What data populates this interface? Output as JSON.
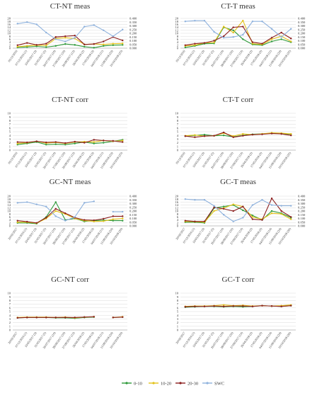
{
  "colors": {
    "d0_10": "#2e9a3a",
    "d10_20": "#e3c21a",
    "d20_30": "#8b1e1e",
    "swc": "#8fb2dd",
    "grid": "#d9d9d9",
    "axis": "#999999",
    "text": "#333333"
  },
  "legend": {
    "items": [
      {
        "key": "d0_10",
        "label": "0-10"
      },
      {
        "key": "d10_20",
        "label": "10-20"
      },
      {
        "key": "d20_30",
        "label": "20-30"
      },
      {
        "key": "swc",
        "label": "SWC"
      }
    ]
  },
  "chart_data": [
    {
      "id": "ctnt_meas",
      "title": "CT-NT meas",
      "type": "line",
      "ylim": [
        0,
        20
      ],
      "yticks": [
        0,
        2,
        4,
        6,
        8,
        10,
        12,
        14,
        16,
        18,
        20
      ],
      "y2lim": [
        0,
        0.4
      ],
      "y2ticks": [
        "0.000",
        "0.050",
        "0.100",
        "0.150",
        "0.200",
        "0.250",
        "0.300",
        "0.350",
        "0.400"
      ],
      "x": [
        "05/12/2016",
        "07/12/2016 (1)",
        "10/05/2017 (3)",
        "31/05/2017 (5)",
        "26/07/2017 (10)",
        "27/09/2017 (16)",
        "26/09/2017 (12)",
        "26/04/2018 (2)",
        "17/05/2018 (3)",
        "04/07/2018 (11)",
        "11/09/2018 (23)",
        "10/10/2018 (25)"
      ],
      "series": [
        {
          "name": "0-10",
          "key": "d0_10",
          "values": [
            0.5,
            0.8,
            1.2,
            0.7,
            1.5,
            2.8,
            2.2,
            1.0,
            0.3,
            1.5,
            2.0,
            2.2
          ]
        },
        {
          "name": "10-20",
          "key": "d10_20",
          "values": [
            1.0,
            1.5,
            2.0,
            1.8,
            6.5,
            7.0,
            6.5,
            2.5,
            2.8,
            2.5,
            3.0,
            3.2
          ]
        },
        {
          "name": "20-30",
          "key": "d20_30",
          "values": [
            2.0,
            3.5,
            2.2,
            3.0,
            7.5,
            8.0,
            8.5,
            2.5,
            2.8,
            4.5,
            7.5,
            5.2
          ]
        },
        {
          "name": "SWC",
          "key": "swc",
          "axis": "y2",
          "values": [
            0.33,
            0.35,
            0.32,
            0.21,
            0.12,
            0.09,
            0.14,
            0.29,
            0.31,
            0.24,
            0.16,
            0.25
          ]
        }
      ]
    },
    {
      "id": "ctt_meas",
      "title": "CT-T meas",
      "type": "line",
      "ylim": [
        0,
        20
      ],
      "yticks": [
        0,
        2,
        4,
        6,
        8,
        10,
        12,
        14,
        16,
        18,
        20
      ],
      "y2lim": [
        0,
        0.4
      ],
      "y2ticks": [
        "0.000",
        "0.050",
        "0.100",
        "0.150",
        "0.200",
        "0.250",
        "0.300",
        "0.350",
        "0.400"
      ],
      "x": [
        "05/12/2016",
        "07/12/2016 (1)",
        "10/05/2017 (3)",
        "31/05/2017 (5)",
        "26/07/2017 (10)",
        "28/09/2017 (16)",
        "27/09/2017 (13)",
        "26/04/2018 (2)",
        "17/05/2018 (3)",
        "04/07/2018 (11)",
        "11/09/2018 (24)",
        "10/10/2018 (25)"
      ],
      "series": [
        {
          "name": "0-10",
          "key": "d0_10",
          "values": [
            0.5,
            1.5,
            3.0,
            3.2,
            14.0,
            12.0,
            6.0,
            2.5,
            2.0,
            4.5,
            6.0,
            4.0
          ]
        },
        {
          "name": "10-20",
          "key": "d10_20",
          "values": [
            1.5,
            2.0,
            3.5,
            3.8,
            14.5,
            10.5,
            18.5,
            3.0,
            2.5,
            6.0,
            8.0,
            4.5
          ]
        },
        {
          "name": "20-30",
          "key": "d20_30",
          "values": [
            2.0,
            3.0,
            3.5,
            5.0,
            8.0,
            14.0,
            14.5,
            4.0,
            3.0,
            7.0,
            10.5,
            6.5
          ]
        },
        {
          "name": "SWC",
          "key": "swc",
          "axis": "y2",
          "values": [
            0.36,
            0.37,
            0.37,
            0.22,
            0.14,
            0.15,
            0.18,
            0.36,
            0.36,
            0.26,
            0.15,
            0.26
          ]
        }
      ]
    },
    {
      "id": "ctnt_corr",
      "title": "CT-NT corr",
      "type": "line",
      "ylim": [
        0,
        10
      ],
      "yticks": [
        0,
        1,
        2,
        3,
        4,
        5,
        6,
        7,
        8,
        9,
        10
      ],
      "x": [
        "05/12/2016",
        "07/12/2016 (1)",
        "10/05/2017 (3)",
        "31/05/2017 (5)",
        "26/07/2017 (10)",
        "27/09/2017 (16)",
        "26/09/2017 (12)",
        "26/04/2018 (2)",
        "17/05/2018 (3)",
        "04/07/2018 (11)",
        "11/09/2018 (23)",
        "10/10/2018 (25)"
      ],
      "series": [
        {
          "name": "0-10",
          "key": "d0_10",
          "values": [
            1.5,
            1.8,
            2.2,
            1.5,
            1.6,
            1.5,
            1.8,
            2.2,
            1.8,
            2.0,
            2.4,
            2.8
          ]
        },
        {
          "name": "10-20",
          "key": "d10_20",
          "values": [
            1.8,
            2.0,
            2.4,
            1.9,
            2.1,
            1.8,
            2.2,
            2.3,
            2.2,
            2.6,
            2.4,
            2.6
          ]
        },
        {
          "name": "20-30",
          "key": "d20_30",
          "values": [
            2.2,
            2.1,
            2.4,
            2.1,
            2.2,
            1.9,
            2.3,
            2.0,
            2.8,
            2.6,
            2.5,
            2.2
          ]
        }
      ]
    },
    {
      "id": "ctt_corr",
      "title": "CT-T corr",
      "type": "line",
      "ylim": [
        0,
        10
      ],
      "yticks": [
        0,
        1,
        2,
        3,
        4,
        5,
        6,
        7,
        8,
        9,
        10
      ],
      "x": [
        "05/12/2016",
        "07/12/2016 (1)",
        "10/05/2017 (3)",
        "31/05/2017 (5)",
        "26/07/2017 (10)",
        "28/09/2017 (16)",
        "27/09/2017 (13)",
        "26/04/2018 (2)",
        "17/05/2018 (3)",
        "04/07/2018 (14)",
        "11/09/2018 (24)",
        "10/10/2018 (25)"
      ],
      "series": [
        {
          "name": "0-10",
          "key": "d0_10",
          "values": [
            3.8,
            4.0,
            4.2,
            3.9,
            4.0,
            3.6,
            4.0,
            4.3,
            4.4,
            4.6,
            4.5,
            4.3
          ]
        },
        {
          "name": "10-20",
          "key": "d10_20",
          "values": [
            3.9,
            4.1,
            3.8,
            3.9,
            4.6,
            3.8,
            4.4,
            4.2,
            4.4,
            4.7,
            4.6,
            4.4
          ]
        },
        {
          "name": "20-30",
          "key": "d20_30",
          "values": [
            3.8,
            3.5,
            3.8,
            3.9,
            4.8,
            3.5,
            3.9,
            4.2,
            4.3,
            4.5,
            4.4,
            4.0
          ]
        }
      ]
    },
    {
      "id": "gcnt_meas",
      "title": "GC-NT meas",
      "type": "line",
      "ylim": [
        0,
        20
      ],
      "yticks": [
        0,
        2,
        4,
        6,
        8,
        10,
        12,
        14,
        16,
        18,
        20
      ],
      "y2lim": [
        0,
        0.4
      ],
      "y2ticks": [
        "0.000",
        "0.050",
        "0.100",
        "0.150",
        "0.200",
        "0.250",
        "0.300",
        "0.350",
        "0.400"
      ],
      "x": [
        "20/02/2017",
        "07/12/2016 (1)",
        "10/05/2017 (3)",
        "31/05/2017 (5)",
        "26/07/2017 (10)",
        "28/09/2017 (16)",
        "27/09/2017 (12)",
        "26/04/2018 (2)",
        "17/05/2018 (3)",
        "04/07/2018 (11)",
        "11/09/2018 (24)",
        "10/10/2018 (26)"
      ],
      "series": [
        {
          "name": "0-10",
          "key": "d0_10",
          "values": [
            2.0,
            2.0,
            1.5,
            6.0,
            16.0,
            4.0,
            5.0,
            3.0,
            3.5,
            3.8,
            3.5,
            3.5
          ]
        },
        {
          "name": "10-20",
          "key": "d10_20",
          "values": [
            2.5,
            2.5,
            1.8,
            5.0,
            10.0,
            8.0,
            5.0,
            3.5,
            3.0,
            3.2,
            4.5,
            5.0
          ]
        },
        {
          "name": "20-30",
          "key": "d20_30",
          "values": [
            3.5,
            2.8,
            2.0,
            5.5,
            11.5,
            8.5,
            5.5,
            4.0,
            3.8,
            4.8,
            6.5,
            6.5
          ]
        },
        {
          "name": "SWC",
          "key": "swc",
          "axis": "y2",
          "values": [
            0.31,
            0.32,
            0.29,
            0.26,
            0.13,
            0.07,
            0.12,
            0.31,
            0.33,
            null,
            0.19,
            0.19
          ]
        }
      ]
    },
    {
      "id": "gct_meas",
      "title": "GC-T meas",
      "type": "line",
      "ylim": [
        0,
        20
      ],
      "yticks": [
        0,
        2,
        4,
        6,
        8,
        10,
        12,
        14,
        16,
        18,
        20
      ],
      "y2lim": [
        0,
        0.4
      ],
      "y2ticks": [
        "0.000",
        "0.050",
        "0.100",
        "0.150",
        "0.200",
        "0.250",
        "0.300",
        "0.350",
        "0.400"
      ],
      "x": [
        "20/02/2017",
        "07/12/2016 (1)",
        "10/05/2017 (3)",
        "31/05/2017 (5)",
        "26/07/2017 (10)",
        "28/09/2017 (16)",
        "27/09/2017 (13)",
        "26/04/2018 (2)",
        "17/05/2018 (3)",
        "04/07/2018 (14)",
        "11/09/2018 (24)",
        "10/10/2018 (26)"
      ],
      "series": [
        {
          "name": "0-10",
          "key": "d0_10",
          "values": [
            2.5,
            2.5,
            2.0,
            12.0,
            13.0,
            14.0,
            10.5,
            7.0,
            4.0,
            10.0,
            8.5,
            5.5
          ]
        },
        {
          "name": "10-20",
          "key": "d10_20",
          "values": [
            3.0,
            2.8,
            2.5,
            10.0,
            12.0,
            14.5,
            13.0,
            6.0,
            4.5,
            8.5,
            8.0,
            4.5
          ]
        },
        {
          "name": "20-30",
          "key": "d20_30",
          "values": [
            3.5,
            3.0,
            3.0,
            12.5,
            11.5,
            10.0,
            13.0,
            4.5,
            4.0,
            18.5,
            10.0,
            6.0
          ]
        },
        {
          "name": "SWC",
          "key": "swc",
          "axis": "y2",
          "values": [
            0.36,
            0.35,
            0.35,
            0.27,
            0.15,
            0.06,
            0.11,
            0.28,
            0.35,
            0.28,
            0.27,
            0.27
          ]
        }
      ]
    },
    {
      "id": "gcnt_corr",
      "title": "GC-NT corr",
      "type": "line",
      "ylim": [
        0,
        10
      ],
      "yticks": [
        0,
        1,
        2,
        3,
        4,
        5,
        6,
        7,
        8,
        9,
        10
      ],
      "x": [
        "20/02/2017",
        "07/12/2016 (1)",
        "10/05/2017 (3)",
        "31/05/2017 (5)",
        "26/07/2017 (10)",
        "28/09/2017 (16)",
        "27/09/2017 (12)",
        "26/04/2018 (2)",
        "17/05/2018 (3)",
        "04/07/2018 (11)",
        "11/09/2018 (24)",
        "10/10/2018 (26)"
      ],
      "series": [
        {
          "name": "0-10",
          "key": "d0_10",
          "values": [
            3.3,
            3.4,
            3.4,
            3.4,
            3.3,
            3.3,
            3.2,
            3.4,
            3.5,
            null,
            3.4,
            3.5
          ]
        },
        {
          "name": "10-20",
          "key": "d10_20",
          "values": [
            3.4,
            3.5,
            3.5,
            3.5,
            3.4,
            3.5,
            3.3,
            3.5,
            3.6,
            null,
            3.4,
            3.6
          ]
        },
        {
          "name": "20-30",
          "key": "d20_30",
          "values": [
            3.3,
            3.4,
            3.4,
            3.4,
            3.4,
            3.4,
            3.4,
            3.5,
            3.6,
            null,
            3.4,
            3.5
          ]
        }
      ]
    },
    {
      "id": "gct_corr",
      "title": "GC-T corr",
      "type": "line",
      "ylim": [
        0,
        10
      ],
      "yticks": [
        0,
        1,
        2,
        3,
        4,
        5,
        6,
        7,
        8,
        9,
        10
      ],
      "x": [
        "20/02/2017",
        "07/12/2016 (1)",
        "10/05/2017 (3)",
        "31/05/2017 (5)",
        "26/07/2017 (10)",
        "28/09/2017 (16)",
        "27/09/2017 (13)",
        "26/04/2018 (2)",
        "17/05/2018 (3)",
        "04/07/2018 (14)",
        "11/09/2018 (24)",
        "10/10/2018 (26)"
      ],
      "series": [
        {
          "name": "0-10",
          "key": "d0_10",
          "values": [
            6.2,
            6.3,
            6.4,
            6.4,
            6.3,
            6.4,
            6.3,
            6.4,
            6.6,
            6.5,
            6.4,
            6.6
          ]
        },
        {
          "name": "10-20",
          "key": "d10_20",
          "values": [
            6.4,
            6.5,
            6.5,
            6.6,
            6.8,
            6.6,
            6.7,
            6.5,
            6.6,
            6.5,
            6.6,
            6.8
          ]
        },
        {
          "name": "20-30",
          "key": "d20_30",
          "values": [
            6.3,
            6.4,
            6.4,
            6.5,
            6.4,
            6.5,
            6.5,
            6.4,
            6.6,
            6.5,
            6.4,
            6.6
          ]
        }
      ]
    }
  ]
}
